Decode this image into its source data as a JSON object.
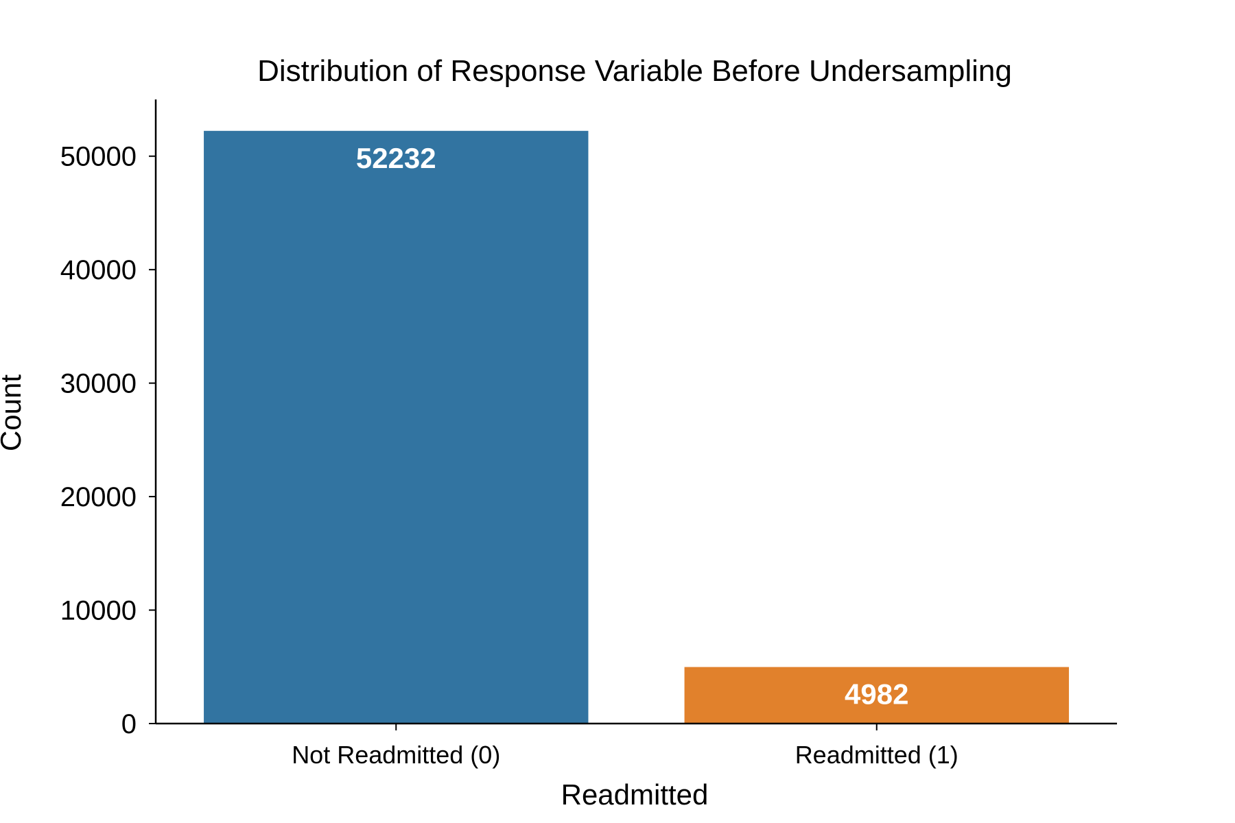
{
  "chart_data": {
    "type": "bar",
    "title": "Distribution of Response Variable Before Undersampling",
    "xlabel": "Readmitted",
    "ylabel": "Count",
    "categories": [
      "Not Readmitted (0)",
      "Readmitted (1)"
    ],
    "values": [
      52232,
      4982
    ],
    "value_labels": [
      "52232",
      "4982"
    ],
    "colors": [
      "#3274a1",
      "#e1812c"
    ],
    "ylim": [
      0,
      55000
    ],
    "yticks": [
      0,
      10000,
      20000,
      30000,
      40000,
      50000
    ],
    "ytick_labels": [
      "0",
      "10000",
      "20000",
      "30000",
      "40000",
      "50000"
    ],
    "grid": false,
    "legend": "none"
  }
}
